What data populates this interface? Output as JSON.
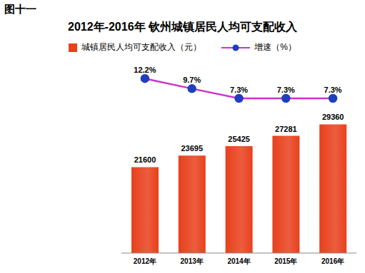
{
  "chart_data": {
    "type": "bar",
    "title": "2012年-2016年  钦州城镇居民人均可支配收入",
    "annotations": [
      "图十一"
    ],
    "categories": [
      "2012年",
      "2013年",
      "2014年",
      "2015年",
      "2016年"
    ],
    "series": [
      {
        "name": "城镇居民人均可支配收入（元）",
        "type": "bar",
        "color": "#e8401c",
        "values": [
          21600,
          23695,
          25425,
          27281,
          29360
        ]
      },
      {
        "name": "增速（%）",
        "type": "line",
        "axis": "y2",
        "color": "#cc33cc",
        "marker": "circle",
        "values": [
          12.2,
          9.7,
          7.3,
          7.3,
          7.3
        ],
        "value_labels": [
          "12.2%",
          "9.7%",
          "7.3%",
          "7.3%",
          "7.3%"
        ]
      }
    ],
    "ylim": [
      6000,
      39000
    ],
    "y2lim": [
      -31,
      14
    ],
    "tick_labels": "x",
    "data_labels": true,
    "legend": "top",
    "grid": false
  }
}
